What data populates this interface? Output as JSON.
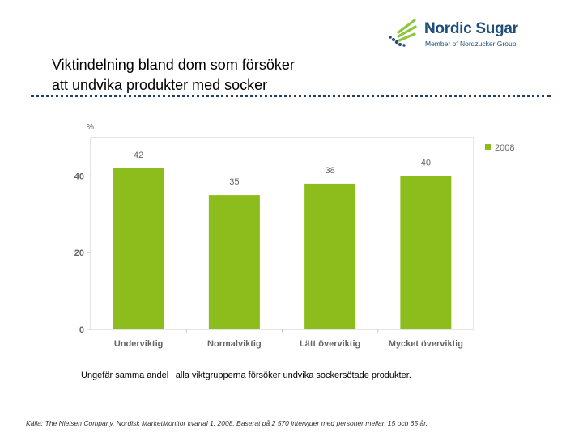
{
  "logo": {
    "name": "Nordic Sugar",
    "tagline": "Member of Nordzucker Group",
    "icon": "nordic-sugar-logo-mark",
    "colors": {
      "blue": "#1f4e79",
      "green": "#8dc63f"
    }
  },
  "slide": {
    "title_line1": "Viktindelning bland dom som försöker",
    "title_line2": "att undvika produkter med socker",
    "caption": "Ungefär samma andel i alla viktgrupperna försöker undvika sockersötade produkter.",
    "source": "Källa: The Nielsen Company. Nordisk MarketMonitor kvartal 1. 2008. Baserat på 2 570 intervjuer med personer mellan 15 och 65 år."
  },
  "chart_data": {
    "type": "bar",
    "title": "",
    "ylabel": "%",
    "xlabel": "",
    "categories": [
      "Underviktig",
      "Normalviktig",
      "Lätt överviktig",
      "Mycket överviktig"
    ],
    "series": [
      {
        "name": "2008",
        "values": [
          42,
          35,
          38,
          40
        ],
        "color": "#8cbd1c"
      }
    ],
    "ylim": [
      0,
      50
    ],
    "yticks": [
      0,
      20,
      40
    ],
    "grid": false,
    "legend": "top-right"
  }
}
